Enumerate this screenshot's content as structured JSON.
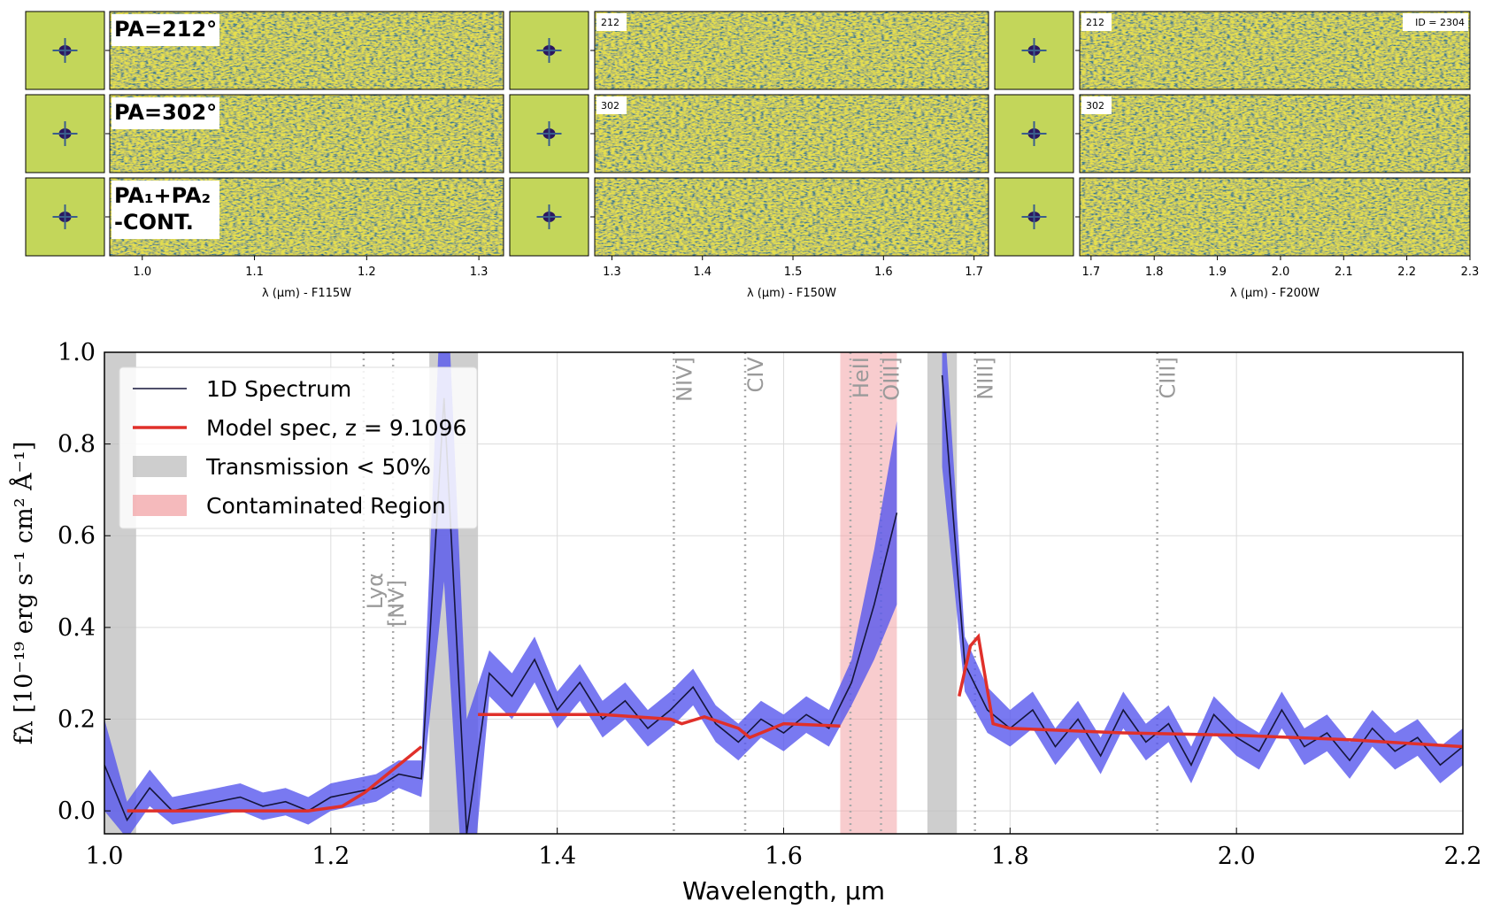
{
  "chart_data": [
    {
      "type": "image",
      "xlabel": "λ (μm) - F115W",
      "xlim": [
        0.971,
        1.322
      ],
      "xticks": [
        {
          "value": 1.0,
          "label": "1.0"
        },
        1.1,
        1.2,
        1.3
      ],
      "row_labels": [
        "PA=212°",
        "PA=302°",
        [
          "PA₁+PA₂",
          "-CONT."
        ]
      ]
    },
    {
      "type": "image",
      "xlabel": "λ (μm) - F150W",
      "xlim": [
        1.281,
        1.716
      ],
      "xticks": [
        1.3,
        1.4,
        1.5,
        1.6,
        1.7
      ],
      "row_labels": [
        "212",
        "302"
      ]
    },
    {
      "type": "image",
      "xlabel": "λ (μm) - F200W",
      "xlim": [
        1.682,
        2.3
      ],
      "xticks": [
        1.7,
        1.8,
        1.9,
        {
          "value": 2.0,
          "label": "2.0"
        },
        2.1,
        2.2,
        2.3
      ],
      "row_labels": [
        "212",
        "302"
      ],
      "annotation": "ID = 2304"
    },
    {
      "type": "line",
      "xlabel": "Wavelength, μm",
      "ylabel": "fλ [10⁻¹⁹ erg s⁻¹ cm² Å⁻¹]",
      "x": [
        1.0,
        1.02,
        1.04,
        1.06,
        1.08,
        1.1,
        1.12,
        1.14,
        1.16,
        1.18,
        1.2,
        1.22,
        1.24,
        1.26,
        1.28,
        1.3,
        1.32,
        1.34,
        1.36,
        1.38,
        1.4,
        1.42,
        1.44,
        1.46,
        1.48,
        1.5,
        1.52,
        1.54,
        1.56,
        1.58,
        1.6,
        1.62,
        1.64,
        1.66,
        1.68,
        1.7,
        1.72,
        1.74,
        1.76,
        1.78,
        1.8,
        1.82,
        1.84,
        1.86,
        1.88,
        1.9,
        1.92,
        1.94,
        1.96,
        1.98,
        2.0,
        2.02,
        2.04,
        2.06,
        2.08,
        2.1,
        2.12,
        2.14,
        2.16,
        2.18,
        2.2
      ],
      "series": [
        {
          "name": "1D Spectrum",
          "color": "#15153a",
          "error_color": "#5858ee",
          "values": [
            0.1,
            -0.02,
            0.05,
            0.0,
            0.01,
            0.02,
            0.03,
            0.01,
            0.02,
            0.0,
            0.03,
            0.04,
            0.05,
            0.08,
            0.07,
            0.9,
            -0.05,
            0.3,
            0.25,
            0.33,
            0.22,
            0.28,
            0.2,
            0.24,
            0.18,
            0.22,
            0.27,
            0.19,
            0.15,
            0.2,
            0.17,
            0.21,
            0.18,
            0.28,
            0.45,
            0.65,
            null,
            0.95,
            0.32,
            0.22,
            0.18,
            0.22,
            0.14,
            0.2,
            0.12,
            0.22,
            0.15,
            0.19,
            0.1,
            0.21,
            0.16,
            0.13,
            0.22,
            0.14,
            0.17,
            0.11,
            0.18,
            0.13,
            0.16,
            0.1,
            0.14
          ],
          "error": [
            0.1,
            0.04,
            0.04,
            0.03,
            0.03,
            0.03,
            0.03,
            0.03,
            0.03,
            0.03,
            0.03,
            0.03,
            0.03,
            0.03,
            0.04,
            0.4,
            0.25,
            0.05,
            0.05,
            0.05,
            0.04,
            0.04,
            0.04,
            0.04,
            0.04,
            0.04,
            0.04,
            0.04,
            0.04,
            0.04,
            0.04,
            0.04,
            0.04,
            0.05,
            0.12,
            0.2,
            null,
            0.2,
            0.06,
            0.05,
            0.04,
            0.04,
            0.04,
            0.04,
            0.04,
            0.04,
            0.04,
            0.04,
            0.04,
            0.04,
            0.04,
            0.04,
            0.04,
            0.04,
            0.04,
            0.04,
            0.04,
            0.04,
            0.04,
            0.04,
            0.04
          ]
        },
        {
          "name": "Model spec, z = 9.1096",
          "color": "#e0302a",
          "x": [
            1.02,
            1.1,
            1.18,
            1.21,
            1.23,
            1.25,
            1.27,
            1.28,
            1.3,
            1.33,
            1.38,
            1.44,
            1.5,
            1.51,
            1.53,
            1.56,
            1.57,
            1.6,
            1.65,
            1.7,
            1.755,
            1.765,
            1.772,
            1.785,
            1.8,
            1.9,
            2.0,
            2.1,
            2.2
          ],
          "values": [
            0,
            0,
            0,
            0.01,
            0.04,
            0.08,
            0.12,
            0.14,
            null,
            0.21,
            0.21,
            0.21,
            0.2,
            0.19,
            0.205,
            0.18,
            0.16,
            0.19,
            0.185,
            null,
            0.25,
            0.36,
            0.38,
            0.19,
            0.18,
            0.17,
            0.165,
            0.155,
            0.14
          ]
        }
      ],
      "transmission": {
        "name": "Transmission < 50%",
        "color": "#bdbdbd",
        "regions": [
          [
            1.0,
            1.028
          ],
          [
            1.287,
            1.33
          ],
          [
            1.727,
            1.753
          ]
        ]
      },
      "contaminated": {
        "name": "Contaminated Region",
        "color": "#f2a3a6",
        "regions": [
          [
            1.65,
            1.7
          ]
        ]
      },
      "lines": [
        {
          "name": "Lyα",
          "x": 1.229
        },
        {
          "name": "[NV]",
          "x": 1.255
        },
        {
          "name": "NIV]",
          "x": 1.503
        },
        {
          "name": "CIV",
          "x": 1.566
        },
        {
          "name": "HeII",
          "x": 1.659
        },
        {
          "name": "OIII]",
          "x": 1.686
        },
        {
          "name": "NIII]",
          "x": 1.769
        },
        {
          "name": "CIII]",
          "x": 1.93
        }
      ],
      "xlim": [
        1.0,
        2.2
      ],
      "ylim": [
        -0.05,
        1.0
      ],
      "xticks": [
        {
          "value": 1.0,
          "label": "1.0"
        },
        1.2,
        1.4,
        1.6,
        1.8,
        {
          "value": 2.0,
          "label": "2.0"
        },
        2.2
      ],
      "yticks": [
        {
          "value": 0.0,
          "label": "0.0"
        },
        0.2,
        0.4,
        0.6,
        0.8,
        {
          "value": 1.0,
          "label": "1.0"
        }
      ],
      "grid": true,
      "legend": "upper left"
    }
  ]
}
